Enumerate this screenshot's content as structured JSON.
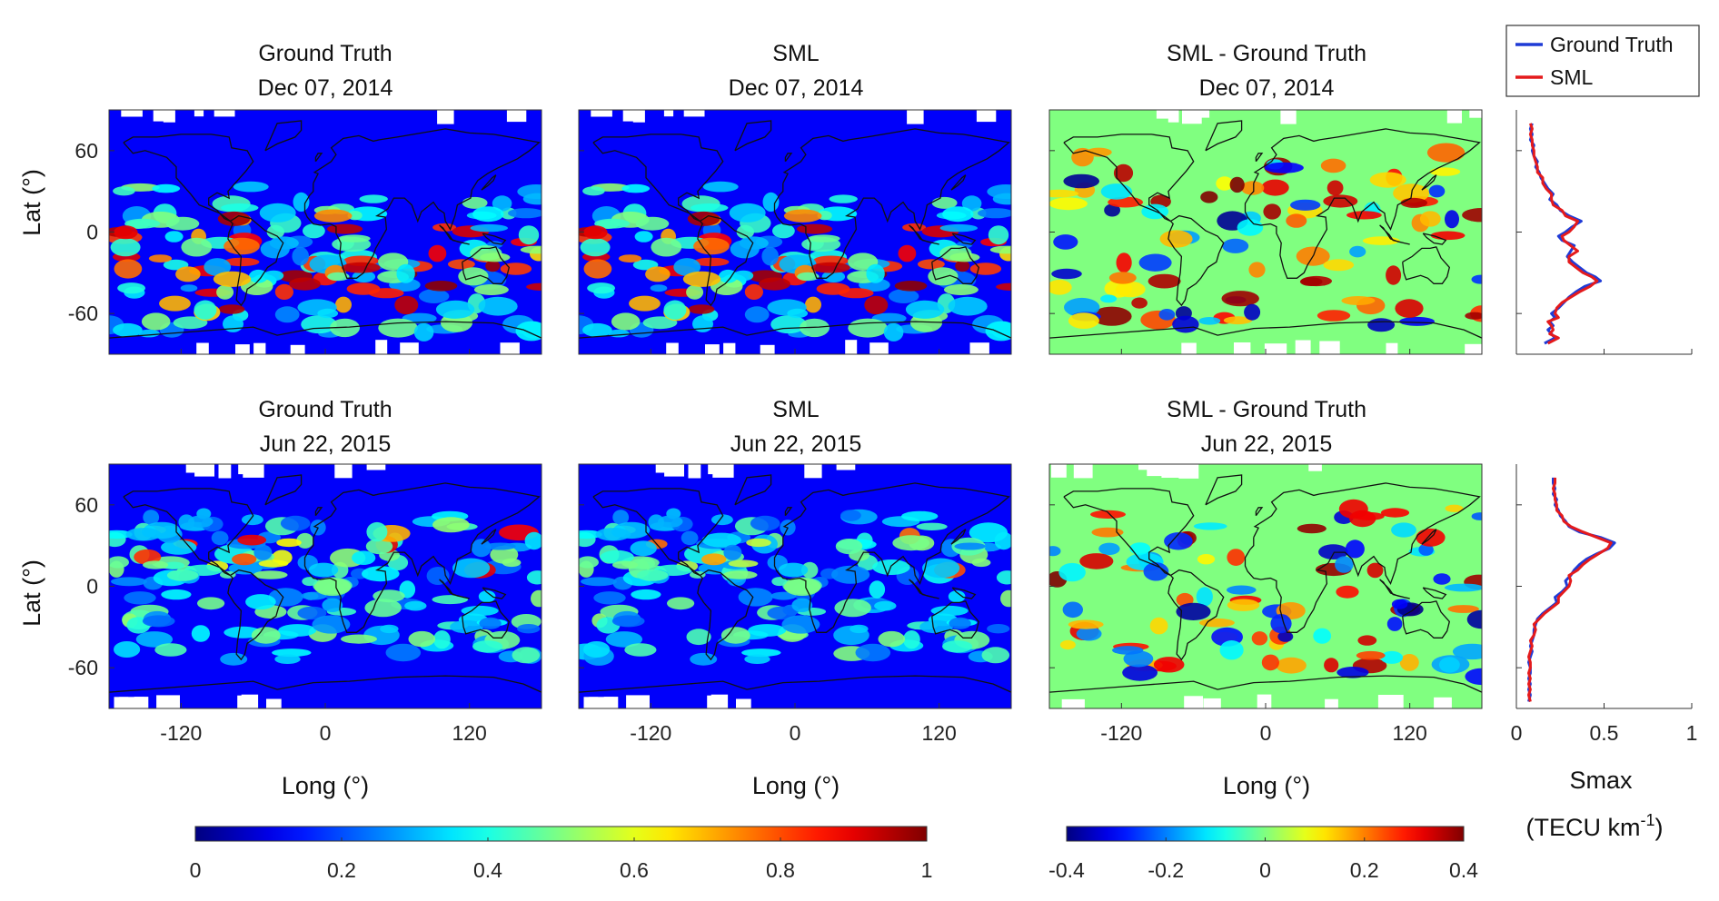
{
  "chart_data": [
    {
      "type": "heatmap",
      "title_line1": "Ground Truth",
      "title_line2": "Dec 07, 2014",
      "ylabel": "Lat (°)",
      "xlabel": "",
      "xlim": [
        -180,
        180
      ],
      "ylim": [
        -90,
        90
      ],
      "yticks": [
        "60",
        "0",
        "-60"
      ],
      "xticks": [
        "-120",
        "0",
        "120"
      ],
      "show_xtick_labels": false,
      "colormap": "jet",
      "clim": [
        0,
        1
      ],
      "seed": 11,
      "hot_band": "south"
    },
    {
      "type": "heatmap",
      "title_line1": "SML",
      "title_line2": "Dec 07, 2014",
      "ylabel": "",
      "xlabel": "",
      "xlim": [
        -180,
        180
      ],
      "ylim": [
        -90,
        90
      ],
      "yticks": [],
      "xticks": [
        "-120",
        "0",
        "120"
      ],
      "show_xtick_labels": false,
      "colormap": "jet",
      "clim": [
        0,
        1
      ],
      "seed": 11,
      "hot_band": "south"
    },
    {
      "type": "heatmap",
      "title_line1": "SML - Ground Truth",
      "title_line2": "Dec 07, 2014",
      "ylabel": "",
      "xlabel": "",
      "xlim": [
        -180,
        180
      ],
      "ylim": [
        -90,
        90
      ],
      "yticks": [],
      "xticks": [
        "-120",
        "0",
        "120"
      ],
      "show_xtick_labels": false,
      "colormap": "jet",
      "clim": [
        -0.4,
        0.4
      ],
      "seed": 23,
      "hot_band": "diff"
    },
    {
      "type": "line",
      "title_line1": "",
      "title_line2": "",
      "xlabel": "",
      "ylabel": "",
      "xlim": [
        0,
        1
      ],
      "ylim": [
        -90,
        90
      ],
      "xticks": [],
      "show_xtick_labels": false,
      "legend": {
        "placement": "top",
        "entries": [
          "Ground Truth",
          "SML"
        ]
      },
      "series": [
        {
          "name": "Ground Truth",
          "color": "#1f3bd6",
          "lat": [
            -82,
            -78,
            -75,
            -72,
            -69,
            -66,
            -63,
            -60,
            -56,
            -52,
            -48,
            -44,
            -40,
            -36,
            -33,
            -30,
            -26,
            -22,
            -18,
            -14,
            -10,
            -6,
            -3,
            0,
            4,
            8,
            12,
            16,
            20,
            24,
            28,
            32,
            36,
            40,
            44,
            48,
            52,
            56,
            60,
            64,
            68,
            72,
            76,
            80
          ],
          "smax": [
            0.16,
            0.22,
            0.2,
            0.18,
            0.21,
            0.19,
            0.22,
            0.2,
            0.24,
            0.27,
            0.3,
            0.34,
            0.39,
            0.48,
            0.45,
            0.4,
            0.36,
            0.32,
            0.29,
            0.31,
            0.33,
            0.26,
            0.24,
            0.28,
            0.32,
            0.37,
            0.3,
            0.25,
            0.23,
            0.19,
            0.21,
            0.18,
            0.16,
            0.14,
            0.13,
            0.11,
            0.12,
            0.1,
            0.09,
            0.1,
            0.08,
            0.09,
            0.08,
            0.09
          ]
        },
        {
          "name": "SML",
          "color": "#e41a1c",
          "lat": [
            -82,
            -78,
            -75,
            -72,
            -69,
            -66,
            -63,
            -60,
            -56,
            -52,
            -48,
            -44,
            -40,
            -36,
            -33,
            -30,
            -26,
            -22,
            -18,
            -14,
            -10,
            -6,
            -3,
            0,
            4,
            8,
            12,
            16,
            20,
            24,
            28,
            32,
            36,
            40,
            44,
            48,
            52,
            56,
            60,
            64,
            68,
            72,
            76,
            80
          ],
          "smax": [
            0.18,
            0.24,
            0.19,
            0.21,
            0.2,
            0.18,
            0.24,
            0.22,
            0.23,
            0.26,
            0.31,
            0.36,
            0.42,
            0.46,
            0.43,
            0.38,
            0.34,
            0.3,
            0.3,
            0.35,
            0.31,
            0.27,
            0.26,
            0.3,
            0.33,
            0.35,
            0.28,
            0.26,
            0.21,
            0.2,
            0.2,
            0.17,
            0.15,
            0.15,
            0.12,
            0.12,
            0.11,
            0.1,
            0.1,
            0.09,
            0.09,
            0.08,
            0.09,
            0.08
          ]
        }
      ]
    },
    {
      "type": "heatmap",
      "title_line1": "Ground Truth",
      "title_line2": "Jun 22, 2015",
      "ylabel": "Lat (°)",
      "xlabel": "Long (°)",
      "xlim": [
        -180,
        180
      ],
      "ylim": [
        -90,
        90
      ],
      "yticks": [
        "60",
        "0",
        "-60"
      ],
      "xticks": [
        "-120",
        "0",
        "120"
      ],
      "show_xtick_labels": true,
      "colormap": "jet",
      "clim": [
        0,
        1
      ],
      "seed": 37,
      "hot_band": "north"
    },
    {
      "type": "heatmap",
      "title_line1": "SML",
      "title_line2": "Jun 22, 2015",
      "ylabel": "",
      "xlabel": "Long (°)",
      "xlim": [
        -180,
        180
      ],
      "ylim": [
        -90,
        90
      ],
      "yticks": [],
      "xticks": [
        "-120",
        "0",
        "120"
      ],
      "show_xtick_labels": true,
      "colormap": "jet",
      "clim": [
        0,
        1
      ],
      "seed": 37,
      "hot_band": "north_soft"
    },
    {
      "type": "heatmap",
      "title_line1": "SML - Ground Truth",
      "title_line2": "Jun 22, 2015",
      "ylabel": "",
      "xlabel": "Long (°)",
      "xlim": [
        -180,
        180
      ],
      "ylim": [
        -90,
        90
      ],
      "yticks": [],
      "xticks": [
        "-120",
        "0",
        "120"
      ],
      "show_xtick_labels": true,
      "colormap": "jet",
      "clim": [
        -0.4,
        0.4
      ],
      "seed": 53,
      "hot_band": "diff"
    },
    {
      "type": "line",
      "title_line1": "",
      "title_line2": "",
      "xlabel": "Smax",
      "xlabel2": "(TECU km",
      "xlabel2_sup": "-1",
      "xlabel2_end": ")",
      "ylabel": "",
      "xlim": [
        0,
        1
      ],
      "ylim": [
        -90,
        90
      ],
      "xticks": [
        "0",
        "0.5",
        "1"
      ],
      "show_xtick_labels": true,
      "series": [
        {
          "name": "Ground Truth",
          "color": "#1f3bd6",
          "lat": [
            -85,
            -80,
            -76,
            -72,
            -68,
            -64,
            -60,
            -56,
            -52,
            -48,
            -44,
            -40,
            -36,
            -32,
            -28,
            -24,
            -20,
            -16,
            -12,
            -8,
            -4,
            0,
            4,
            8,
            12,
            16,
            20,
            24,
            28,
            32,
            36,
            40,
            44,
            48,
            52,
            56,
            60,
            64,
            68,
            72,
            76,
            80
          ],
          "smax": [
            0.07,
            0.08,
            0.07,
            0.08,
            0.07,
            0.08,
            0.08,
            0.07,
            0.08,
            0.09,
            0.08,
            0.09,
            0.1,
            0.1,
            0.11,
            0.12,
            0.15,
            0.19,
            0.23,
            0.22,
            0.26,
            0.29,
            0.28,
            0.31,
            0.33,
            0.36,
            0.4,
            0.46,
            0.53,
            0.56,
            0.48,
            0.36,
            0.3,
            0.28,
            0.25,
            0.24,
            0.22,
            0.23,
            0.21,
            0.22,
            0.21,
            0.21
          ]
        },
        {
          "name": "SML",
          "color": "#e41a1c",
          "lat": [
            -85,
            -80,
            -76,
            -72,
            -68,
            -64,
            -60,
            -56,
            -52,
            -48,
            -44,
            -40,
            -36,
            -32,
            -28,
            -24,
            -20,
            -16,
            -12,
            -8,
            -4,
            0,
            4,
            8,
            12,
            16,
            20,
            24,
            28,
            32,
            36,
            40,
            44,
            48,
            52,
            56,
            60,
            64,
            68,
            72,
            76,
            80
          ],
          "smax": [
            0.08,
            0.07,
            0.08,
            0.07,
            0.08,
            0.07,
            0.08,
            0.08,
            0.07,
            0.08,
            0.09,
            0.08,
            0.1,
            0.11,
            0.1,
            0.13,
            0.16,
            0.2,
            0.24,
            0.24,
            0.27,
            0.3,
            0.31,
            0.3,
            0.35,
            0.38,
            0.42,
            0.47,
            0.52,
            0.54,
            0.46,
            0.38,
            0.31,
            0.27,
            0.26,
            0.23,
            0.23,
            0.22,
            0.22,
            0.21,
            0.22,
            0.22
          ]
        }
      ]
    }
  ],
  "colorbars": [
    {
      "ticks": [
        "0",
        "0.2",
        "0.4",
        "0.6",
        "0.8",
        "1"
      ],
      "clim": [
        0,
        1
      ]
    },
    {
      "ticks": [
        "-0.4",
        "-0.2",
        "0",
        "0.2",
        "0.4"
      ],
      "clim": [
        -0.4,
        0.4
      ]
    }
  ]
}
